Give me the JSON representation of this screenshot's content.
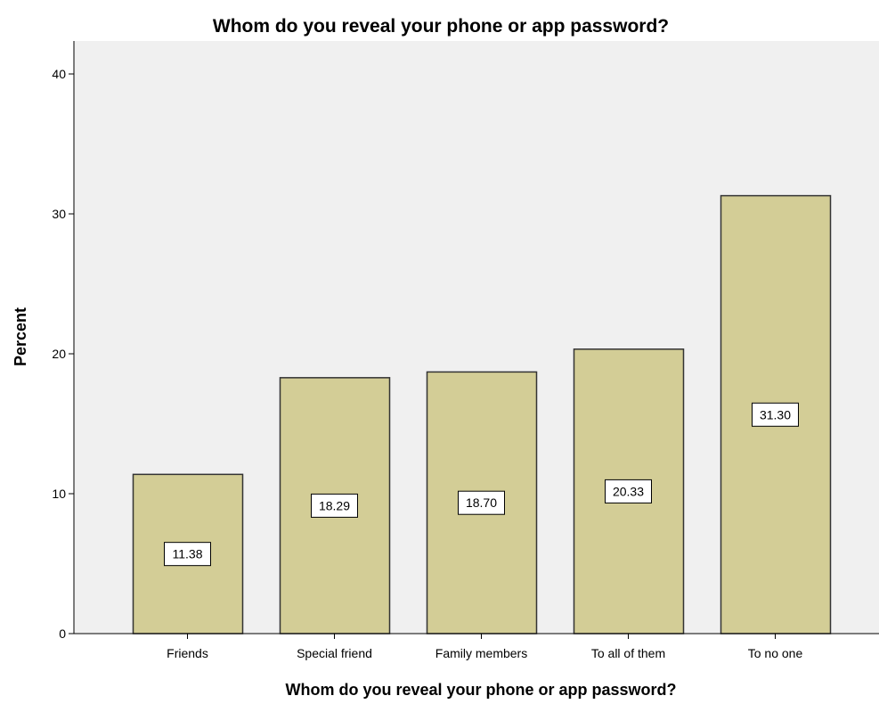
{
  "chart_data": {
    "type": "bar",
    "title": "Whom do you reveal your phone or app password?",
    "xlabel": "Whom do you reveal your phone or app password?",
    "ylabel": "Percent",
    "categories": [
      "Friends",
      "Special friend",
      "Family members",
      "To all of them",
      "To no one"
    ],
    "values": [
      11.38,
      18.29,
      18.7,
      20.33,
      31.3
    ],
    "data_labels": [
      "11.38",
      "18.29",
      "18.70",
      "20.33",
      "31.30"
    ],
    "ylim": [
      0,
      42
    ],
    "yticks": [
      0,
      10,
      20,
      30,
      40
    ],
    "grid": false,
    "legend": "none",
    "colors": {
      "bar_fill": "#d3cd96",
      "bar_stroke": "#333333",
      "plot_background": "#f0f0f0",
      "page_background": "#ffffff",
      "axis": "#000000",
      "label_box_fill": "#ffffff"
    }
  }
}
